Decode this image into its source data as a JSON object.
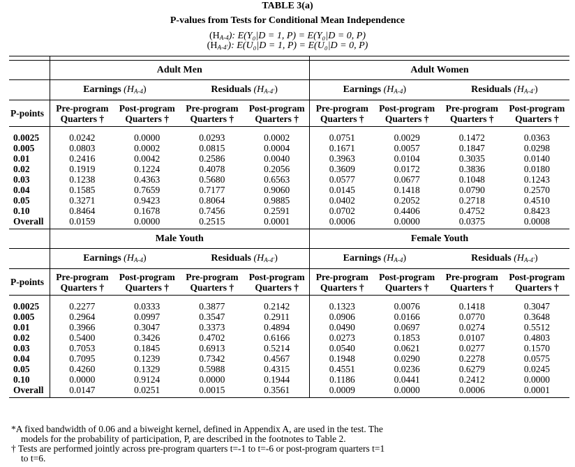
{
  "table_number": "TABLE 3(a)",
  "title": "P-values from Tests for Conditional Mean Independence",
  "hyp1": {
    "name": "(H",
    "sub": "A-4",
    "rest": "): E(Y₀|D = 1, P) = E(Y₀|D = 0, P)"
  },
  "hyp2": {
    "name": "(H",
    "sub": "A-4′",
    "rest": "): E(U₀|D = 1, P) = E(U₀|D = 0, P)"
  },
  "sub_labels": {
    "earnings": "Earnings",
    "earnings_h": "(H",
    "earnings_sub": "A-4",
    "residuals": "Residuals",
    "residuals_h": "(H",
    "residuals_sub": "A-4′",
    "close": ")"
  },
  "col_headers": {
    "ppoints": "P-points",
    "pre1": "Pre-program",
    "post1": "Post-program",
    "qtr": "Quarters †"
  },
  "panels": [
    {
      "groups": [
        "Adult Men",
        "Adult Women"
      ],
      "rows": [
        {
          "p": "0.0025",
          "v": [
            "0.0242",
            "0.0000",
            "0.0293",
            "0.0002",
            "0.0751",
            "0.0029",
            "0.1472",
            "0.0363"
          ]
        },
        {
          "p": "0.005",
          "v": [
            "0.0803",
            "0.0002",
            "0.0815",
            "0.0004",
            "0.1671",
            "0.0057",
            "0.1847",
            "0.0298"
          ]
        },
        {
          "p": "0.01",
          "v": [
            "0.2416",
            "0.0042",
            "0.2586",
            "0.0040",
            "0.3963",
            "0.0104",
            "0.3035",
            "0.0140"
          ]
        },
        {
          "p": "0.02",
          "v": [
            "0.1919",
            "0.1224",
            "0.4078",
            "0.2056",
            "0.3609",
            "0.0172",
            "0.3836",
            "0.0180"
          ]
        },
        {
          "p": "0.03",
          "v": [
            "0.1238",
            "0.4363",
            "0.5680",
            "0.6563",
            "0.0577",
            "0.0677",
            "0.1048",
            "0.1243"
          ]
        },
        {
          "p": "0.04",
          "v": [
            "0.1585",
            "0.7659",
            "0.7177",
            "0.9060",
            "0.0145",
            "0.1418",
            "0.0790",
            "0.2570"
          ]
        },
        {
          "p": "0.05",
          "v": [
            "0.3271",
            "0.9423",
            "0.8064",
            "0.9885",
            "0.0402",
            "0.2052",
            "0.2718",
            "0.4510"
          ]
        },
        {
          "p": "0.10",
          "v": [
            "0.8464",
            "0.1678",
            "0.7456",
            "0.2591",
            "0.0702",
            "0.4406",
            "0.4752",
            "0.8423"
          ]
        },
        {
          "p": "Overall",
          "v": [
            "0.0159",
            "0.0000",
            "0.2515",
            "0.0001",
            "0.0006",
            "0.0000",
            "0.0375",
            "0.0008"
          ]
        }
      ]
    },
    {
      "groups": [
        "Male Youth",
        "Female Youth"
      ],
      "rows": [
        {
          "p": "0.0025",
          "v": [
            "0.2277",
            "0.0333",
            "0.3877",
            "0.2142",
            "0.1323",
            "0.0076",
            "0.1418",
            "0.3047"
          ]
        },
        {
          "p": "0.005",
          "v": [
            "0.2964",
            "0.0997",
            "0.3547",
            "0.2911",
            "0.0906",
            "0.0166",
            "0.0770",
            "0.3648"
          ]
        },
        {
          "p": "0.01",
          "v": [
            "0.3966",
            "0.3047",
            "0.3373",
            "0.4894",
            "0.0490",
            "0.0697",
            "0.0274",
            "0.5512"
          ]
        },
        {
          "p": "0.02",
          "v": [
            "0.5400",
            "0.3426",
            "0.4702",
            "0.6166",
            "0.0273",
            "0.1853",
            "0.0107",
            "0.4803"
          ]
        },
        {
          "p": "0.03",
          "v": [
            "0.7053",
            "0.1845",
            "0.6913",
            "0.5214",
            "0.0540",
            "0.0621",
            "0.0277",
            "0.1570"
          ]
        },
        {
          "p": "0.04",
          "v": [
            "0.7095",
            "0.1239",
            "0.7342",
            "0.4567",
            "0.1948",
            "0.0290",
            "0.2278",
            "0.0575"
          ]
        },
        {
          "p": "0.05",
          "v": [
            "0.4260",
            "0.1329",
            "0.5988",
            "0.4315",
            "0.4551",
            "0.0236",
            "0.6279",
            "0.0245"
          ]
        },
        {
          "p": "0.10",
          "v": [
            "0.0000",
            "0.9124",
            "0.0000",
            "0.1944",
            "0.1186",
            "0.0441",
            "0.2412",
            "0.0000"
          ]
        },
        {
          "p": "Overall",
          "v": [
            "0.0147",
            "0.0251",
            "0.0015",
            "0.3561",
            "0.0009",
            "0.0000",
            "0.0006",
            "0.0001"
          ]
        }
      ]
    }
  ],
  "notes": {
    "n1a": "*A fixed bandwidth of 0.06 and a biweight kernel, defined in Appendix A, are used in the test.  The",
    "n1b": "models for the probability of participation, P, are described in the footnotes to Table 2.",
    "n2a": "† Tests are performed jointly across pre-program quarters t=-1 to t=-6 or post-program quarters t=1",
    "n2b": "to t=6."
  }
}
